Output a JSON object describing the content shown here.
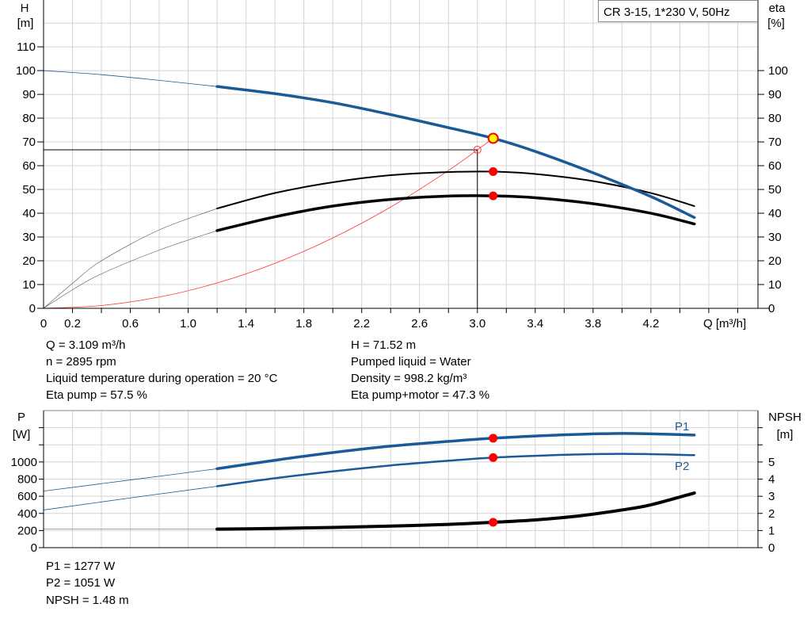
{
  "colors": {
    "head": "#1a5a96",
    "power": "#1a5a96",
    "efficiency": "#000000",
    "npsh": "#000000",
    "system": "#ff3333",
    "duty_point": "#ff0000",
    "duty_point_head": "#ffff00",
    "grid": "#d4d4d4"
  },
  "chart_data": [
    {
      "type": "line",
      "title": "CR 3-15, 1*230 V, 50Hz",
      "xlabel": "Q [m³/h]",
      "ylabel": "H",
      "ylabel_unit": "[m]",
      "y2label": "eta",
      "y2label_unit": "[%]",
      "xlim": [
        0,
        4.94
      ],
      "ylim": [
        0,
        129.7
      ],
      "y2lim": [
        0,
        129.7
      ],
      "grid": true,
      "x_tick_labels": [
        "0",
        "0.2",
        "0.6",
        "1.0",
        "1.4",
        "1.8",
        "2.2",
        "2.6",
        "3.0",
        "3.4",
        "3.8",
        "4.2"
      ],
      "x_tick_values": [
        0,
        0.2,
        0.6,
        1.0,
        1.4,
        1.8,
        2.2,
        2.6,
        3.0,
        3.4,
        3.8,
        4.2
      ],
      "y_tick_labels": [
        "0",
        "10",
        "20",
        "30",
        "40",
        "50",
        "60",
        "70",
        "80",
        "90",
        "100",
        "110"
      ],
      "y2_tick_labels": [
        "0",
        "10",
        "20",
        "30",
        "40",
        "50",
        "60",
        "70",
        "80",
        "90",
        "100"
      ],
      "series": [
        {
          "id": "head",
          "axis": "H",
          "x": [
            0,
            0.4,
            0.8,
            1.2,
            1.6,
            2.0,
            2.4,
            2.8,
            3.109,
            3.4,
            3.8,
            4.2,
            4.5
          ],
          "y": [
            100,
            98.3,
            95.9,
            93.3,
            90.3,
            86.5,
            81.5,
            76,
            71.52,
            66,
            57,
            47,
            38.2
          ],
          "operating_from": 1.2
        },
        {
          "id": "eta-pump",
          "axis": "eta",
          "x": [
            0,
            0.2,
            0.4,
            0.8,
            1.2,
            1.6,
            2.0,
            2.4,
            2.8,
            3.109,
            3.4,
            3.8,
            4.2,
            4.5
          ],
          "y": [
            0,
            10.5,
            20,
            33,
            42,
            48.5,
            53,
            56,
            57.3,
            57.5,
            56.5,
            53.5,
            48.5,
            43
          ],
          "operating_from": 1.2
        },
        {
          "id": "eta-pump-motor",
          "axis": "eta",
          "x": [
            0,
            0.2,
            0.4,
            0.8,
            1.2,
            1.6,
            2.0,
            2.4,
            2.8,
            3.109,
            3.4,
            3.8,
            4.2,
            4.5
          ],
          "y": [
            0,
            7.8,
            14.5,
            24.5,
            32.7,
            38.5,
            43,
            45.8,
            47.2,
            47.3,
            46.5,
            44,
            40,
            35.5
          ],
          "operating_from": 1.2
        },
        {
          "id": "system-curve",
          "axis": "H",
          "x": [
            0,
            0.4,
            0.8,
            1.2,
            1.6,
            2.0,
            2.4,
            2.8,
            3.109
          ],
          "y": [
            0,
            1.18,
            4.74,
            10.66,
            18.94,
            29.6,
            42.6,
            58.0,
            71.52
          ]
        }
      ],
      "reference_point": {
        "q": 3.0,
        "h": 66.7
      },
      "duty_points": [
        {
          "series": "head",
          "q": 3.109,
          "value": 71.52
        },
        {
          "series": "eta-pump",
          "q": 3.109,
          "value": 57.5
        },
        {
          "series": "eta-pump-motor",
          "q": 3.109,
          "value": 47.3
        }
      ]
    },
    {
      "type": "line",
      "ylabel": "P",
      "ylabel_unit": "[W]",
      "y2label": "NPSH",
      "y2label_unit": "[m]",
      "xlim": [
        0,
        4.94
      ],
      "ylim": [
        0,
        1600
      ],
      "y2lim": [
        0,
        8
      ],
      "grid": true,
      "y_tick_labels": [
        "0",
        "200",
        "400",
        "600",
        "800",
        "1000"
      ],
      "y2_tick_labels": [
        "0",
        "1",
        "2",
        "3",
        "4",
        "5"
      ],
      "series": [
        {
          "id": "P1",
          "name": "P1",
          "axis": "P",
          "x": [
            0,
            0.6,
            1.2,
            1.6,
            2.0,
            2.4,
            2.8,
            3.109,
            3.5,
            4.0,
            4.5
          ],
          "y": [
            660,
            790,
            921,
            1020,
            1110,
            1185,
            1240,
            1277,
            1310,
            1333,
            1315
          ],
          "operating_from": 1.2
        },
        {
          "id": "P2",
          "name": "P2",
          "axis": "P",
          "x": [
            0,
            0.6,
            1.2,
            1.6,
            2.0,
            2.4,
            2.8,
            3.109,
            3.5,
            4.0,
            4.5
          ],
          "y": [
            440,
            580,
            717,
            810,
            890,
            960,
            1015,
            1051,
            1078,
            1095,
            1080
          ],
          "operating_from": 1.2
        },
        {
          "id": "NPSH",
          "axis": "NPSH",
          "x": [
            0,
            1.2,
            1.6,
            2.0,
            2.4,
            2.8,
            3.109,
            3.4,
            3.7,
            4.0,
            4.2,
            4.5
          ],
          "y": [
            1.08,
            1.08,
            1.12,
            1.18,
            1.26,
            1.36,
            1.48,
            1.62,
            1.85,
            2.2,
            2.5,
            3.19
          ],
          "operating_from": 1.2
        }
      ],
      "duty_points": [
        {
          "series": "P1",
          "q": 3.109,
          "value": 1277
        },
        {
          "series": "P2",
          "q": 3.109,
          "value": 1051
        },
        {
          "series": "NPSH",
          "q": 3.109,
          "value": 1.48
        }
      ]
    }
  ],
  "info_left": [
    "Q = 3.109 m³/h",
    "n = 2895 rpm",
    "Liquid temperature during operation = 20 °C",
    "Eta pump = 57.5 %"
  ],
  "info_right": [
    "H = 71.52 m",
    "Pumped liquid = Water",
    "Density = 998.2 kg/m³",
    "Eta pump+motor = 47.3 %"
  ],
  "info_bottom": [
    "P1 = 1277 W",
    "P2 = 1051 W",
    "NPSH = 1.48 m"
  ]
}
